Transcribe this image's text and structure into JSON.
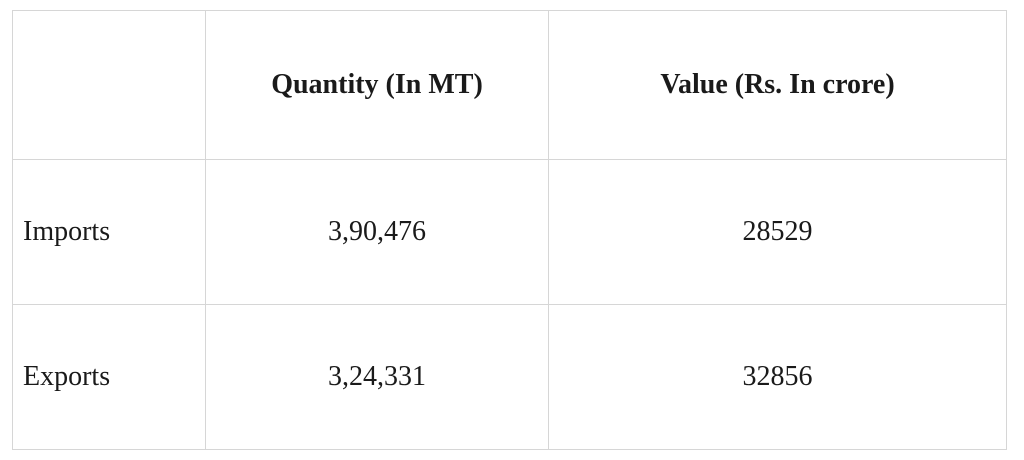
{
  "table": {
    "headers": [
      "",
      "Quantity (In MT)",
      "Value (Rs. In crore)"
    ],
    "rows": [
      {
        "label": "Imports",
        "quantity": "3,90,476",
        "value": "28529"
      },
      {
        "label": "Exports",
        "quantity": "3,24,331",
        "value": "32856"
      }
    ]
  }
}
